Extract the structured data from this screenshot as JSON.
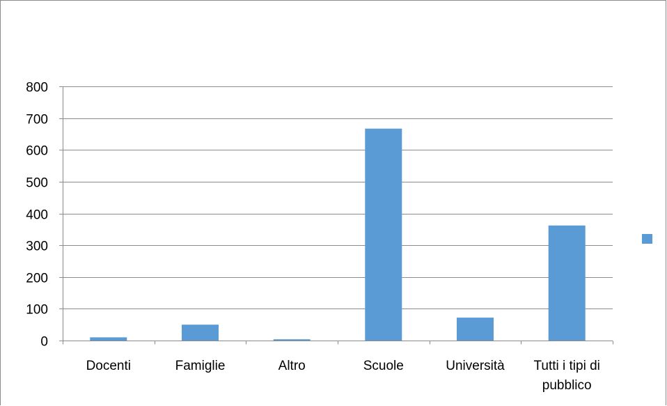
{
  "chart_data": {
    "type": "bar",
    "categories": [
      "Docenti",
      "Famiglie",
      "Altro",
      "Scuole",
      "Università",
      "Tutti i tipi di pubblico"
    ],
    "category_lines": [
      [
        "Docenti"
      ],
      [
        "Famiglie"
      ],
      [
        "Altro"
      ],
      [
        "Scuole"
      ],
      [
        "Università"
      ],
      [
        "Tutti i tipi di",
        "pubblico"
      ]
    ],
    "series": [
      {
        "values": [
          10,
          50,
          4,
          667,
          72,
          362
        ]
      }
    ],
    "ylim": [
      0,
      800
    ],
    "yticks": [
      0,
      100,
      200,
      300,
      400,
      500,
      600,
      700,
      800
    ],
    "grid": true,
    "legend": "right",
    "bar_color": "#5b9bd5",
    "grid_color": "#8c8c8c"
  }
}
